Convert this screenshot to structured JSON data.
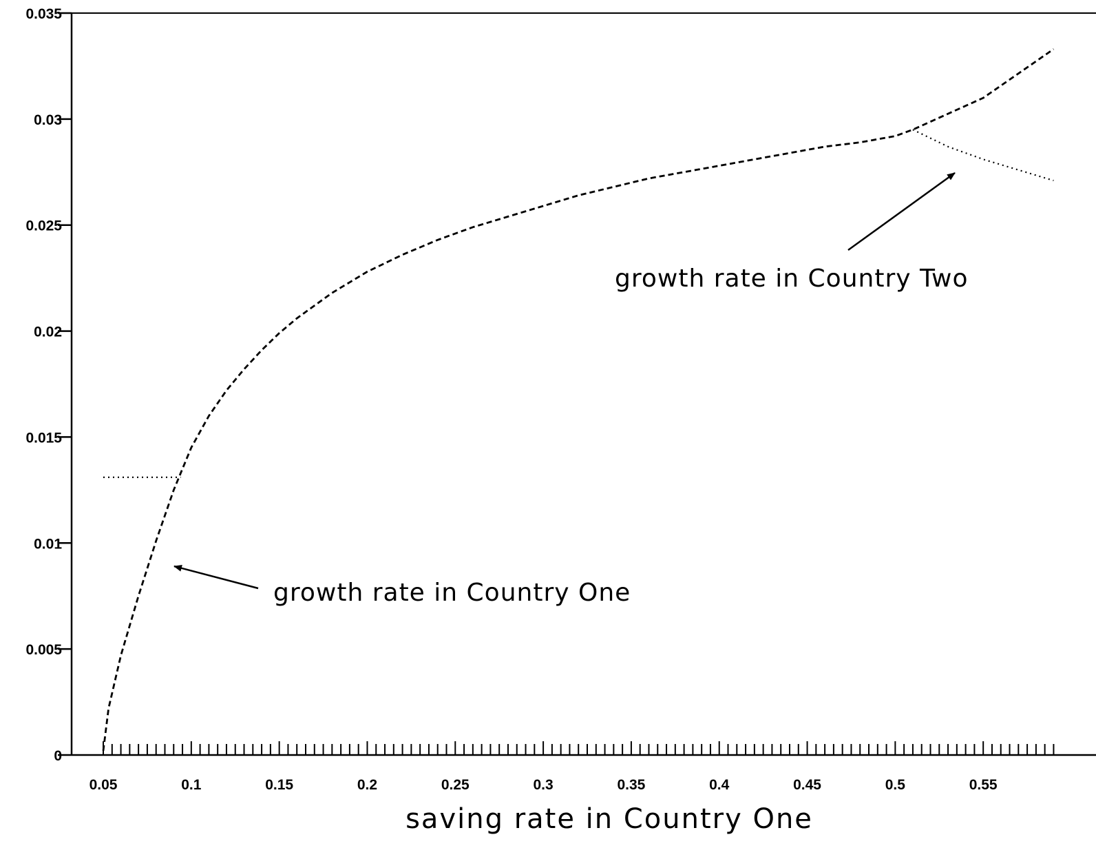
{
  "chart_data": {
    "type": "line",
    "title": "",
    "xlabel": "saving rate in Country One",
    "ylabel": "",
    "xlim": [
      0.032,
      0.6
    ],
    "ylim": [
      0,
      0.035
    ],
    "grid": false,
    "x_ticks": [
      "0.05",
      "0.1",
      "0.15",
      "0.2",
      "0.25",
      "0.3",
      "0.35",
      "0.4",
      "0.45",
      "0.5",
      "0.55"
    ],
    "y_ticks": [
      "0",
      "0.005",
      "0.01",
      "0.015",
      "0.02",
      "0.025",
      "0.03",
      "0.035"
    ],
    "series": [
      {
        "style": "dashed",
        "x": [
          0.05,
          0.053,
          0.06,
          0.07,
          0.08,
          0.09,
          0.094,
          0.1,
          0.11,
          0.12,
          0.13,
          0.14,
          0.15,
          0.16,
          0.17,
          0.18,
          0.19,
          0.2,
          0.22,
          0.24,
          0.26,
          0.28,
          0.3,
          0.32,
          0.34,
          0.36,
          0.38,
          0.4,
          0.42,
          0.44,
          0.46,
          0.48,
          0.5,
          0.51,
          0.55,
          0.59
        ],
        "y": [
          0.0002,
          0.0022,
          0.0047,
          0.0075,
          0.0101,
          0.0125,
          0.0133,
          0.0145,
          0.016,
          0.0172,
          0.0182,
          0.0191,
          0.0199,
          0.0206,
          0.0212,
          0.0218,
          0.0223,
          0.0228,
          0.0236,
          0.0243,
          0.0249,
          0.0254,
          0.0259,
          0.0264,
          0.0268,
          0.0272,
          0.0275,
          0.0278,
          0.0281,
          0.0284,
          0.0287,
          0.0289,
          0.0292,
          0.0295,
          0.031,
          0.0333
        ]
      },
      {
        "style": "dotted",
        "x": [
          0.05,
          0.094
        ],
        "y": [
          0.0131,
          0.0131
        ]
      },
      {
        "style": "dotted",
        "x": [
          0.51,
          0.53,
          0.55,
          0.57,
          0.59
        ],
        "y": [
          0.0295,
          0.0287,
          0.0281,
          0.0276,
          0.0271
        ]
      }
    ],
    "annotations": [
      {
        "text": "growth rate in Country Two",
        "arrow_to": [
          0.543,
          0.0276
        ]
      },
      {
        "text": "growth rate in Country One",
        "arrow_to": [
          0.086,
          0.0089
        ]
      }
    ]
  }
}
